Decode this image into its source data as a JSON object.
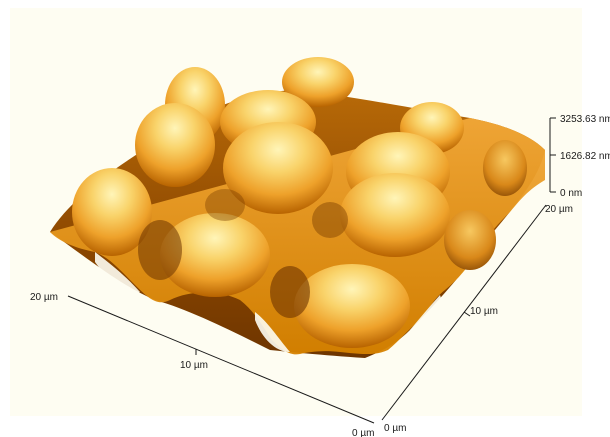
{
  "scene": {
    "kind": "AFM 3D topography render",
    "colors": {
      "plot_background": "#fefdf2",
      "peak_highlight": "#fff3b0",
      "surface_mid": "#f0a022",
      "surface_shadow": "#7a3e00",
      "base_edge": "#d88400"
    }
  },
  "z_axis": {
    "top_label": "3253.63 nm",
    "mid_label": "1626.82 nm",
    "bottom_label": "0 nm"
  },
  "right_axis": {
    "end_label": "20 µm",
    "mid_label": "10 µm",
    "start_label": "0 µm"
  },
  "left_axis": {
    "end_label": "20 µm",
    "mid_label": "10 µm",
    "start_label": "0 µm"
  }
}
